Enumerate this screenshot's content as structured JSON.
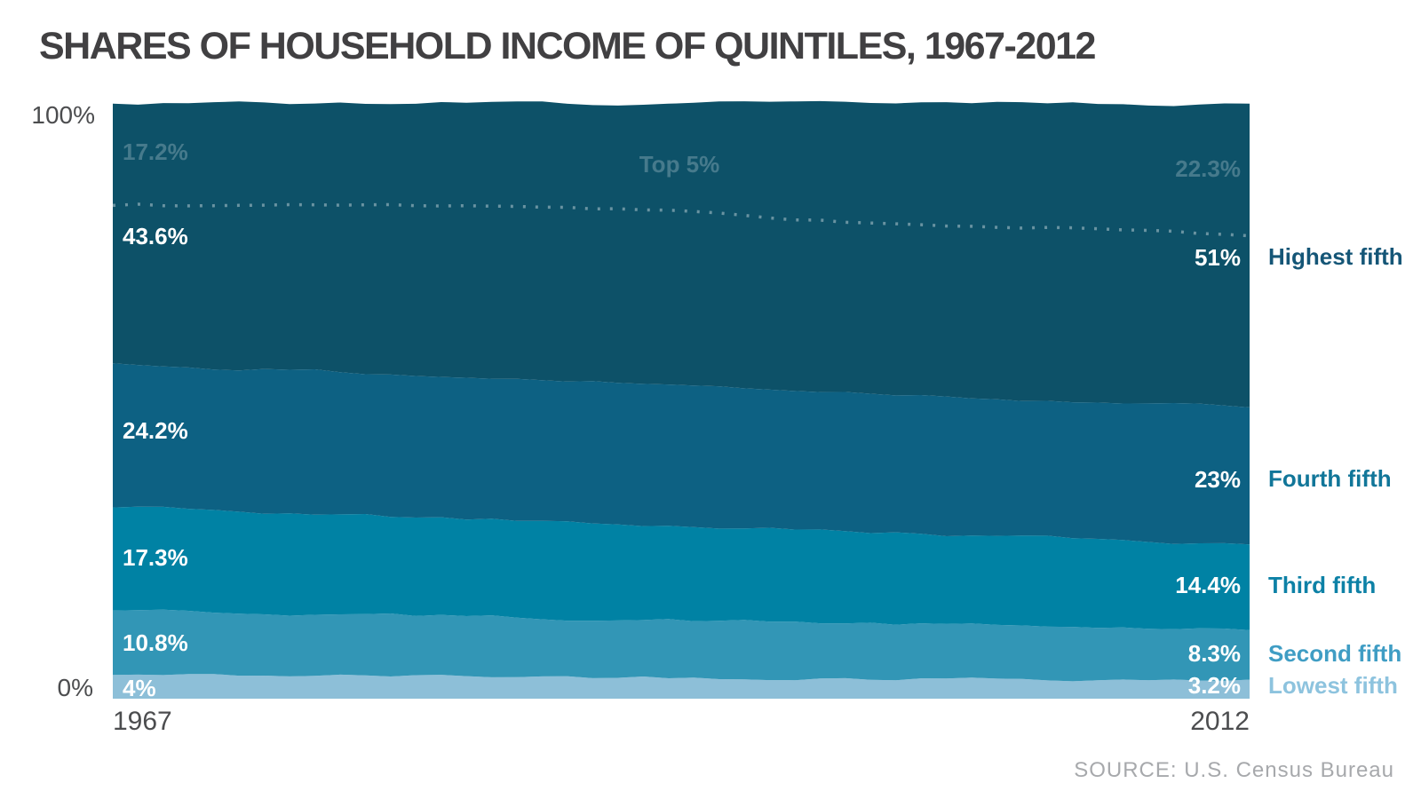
{
  "title": "SHARES OF HOUSEHOLD INCOME OF QUINTILES, 1967-2012",
  "source": "SOURCE: U.S. Census Bureau",
  "y_axis": {
    "top_label": "100%",
    "bottom_label": "0%"
  },
  "x_axis": {
    "left_label": "1967",
    "right_label": "2012"
  },
  "colors": {
    "title_text": "#414042",
    "axis_text": "#4c4d4f",
    "source_text": "#a7a9ac",
    "top5_dots": "rgba(255,255,255,0.38)",
    "muted_in_chart_label": "rgba(255,255,255,0.24)"
  },
  "chart_data": {
    "type": "area",
    "stacked": true,
    "title": "Shares of household income of quintiles, 1967-2012",
    "x": [
      1967,
      2012
    ],
    "x_labels": [
      "1967",
      "2012"
    ],
    "ylim": [
      0,
      100
    ],
    "grid": false,
    "legend_position": "right",
    "series": [
      {
        "name": "Lowest fifth",
        "values": [
          4,
          3.2
        ],
        "start_label": "4%",
        "end_label": "3.2%",
        "color": "#8dbfd8",
        "label_color": "#8dc3de"
      },
      {
        "name": "Second fifth",
        "values": [
          10.8,
          8.3
        ],
        "start_label": "10.8%",
        "end_label": "8.3%",
        "color": "#3296b6",
        "label_color": "#3f9dc4"
      },
      {
        "name": "Third fifth",
        "values": [
          17.3,
          14.4
        ],
        "start_label": "17.3%",
        "end_label": "14.4%",
        "color": "#0082a4",
        "label_color": "#0d81a6"
      },
      {
        "name": "Fourth fifth",
        "values": [
          24.2,
          23
        ],
        "start_label": "24.2%",
        "end_label": "23%",
        "color": "#0d6183",
        "label_color": "#117699"
      },
      {
        "name": "Highest fifth",
        "values": [
          43.6,
          51
        ],
        "start_label": "43.6%",
        "end_label": "51%",
        "color": "#0d5168",
        "label_color": "#155677"
      }
    ],
    "overlay_line": {
      "name": "Top 5%",
      "label": "Top 5%",
      "start_label": "17.2%",
      "end_label": "22.3%",
      "values_from_top": [
        17.2,
        22.3
      ],
      "style": "dotted",
      "measured_from": "top",
      "waypoints_t_v": [
        [
          0,
          17.2
        ],
        [
          0.1,
          17.2
        ],
        [
          0.2,
          17.1
        ],
        [
          0.3,
          17.3
        ],
        [
          0.4,
          17.6
        ],
        [
          0.48,
          17.9
        ],
        [
          0.53,
          18.6
        ],
        [
          0.58,
          19.4
        ],
        [
          0.65,
          20.0
        ],
        [
          0.72,
          20.4
        ],
        [
          0.8,
          20.8
        ],
        [
          0.88,
          21.3
        ],
        [
          0.94,
          21.8
        ],
        [
          1,
          22.3
        ]
      ]
    }
  }
}
